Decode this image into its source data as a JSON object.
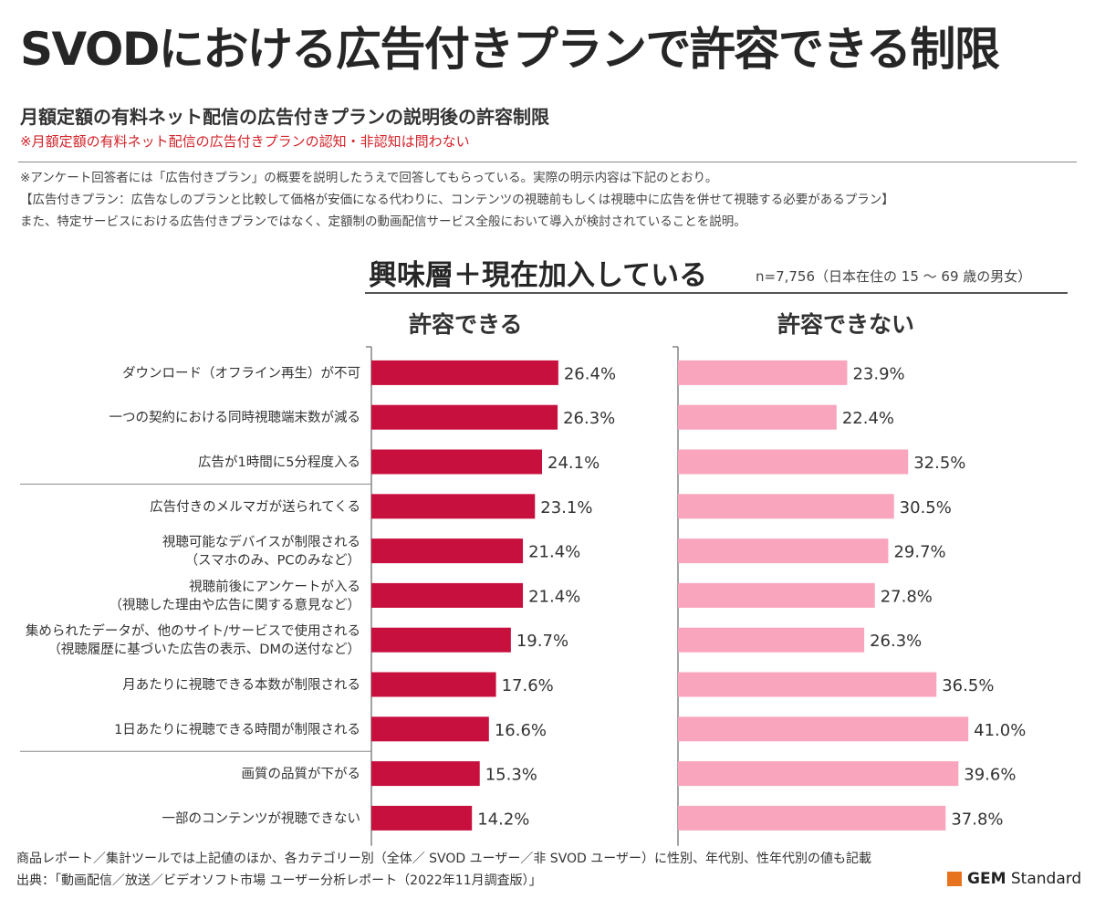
{
  "title": "SVODにおける広告付きプランで許容できる制限",
  "subtitle": "月額定額の有料ネット配信の広告付きプランの説明後の許容制限",
  "subnote": "※月額定額の有料ネット配信の広告付きプランの認知・非認知は問わない",
  "notes": [
    "※アンケート回答者には「広告付きプラン」の概要を説明したうえで回答してもらっている。実際の明示内容は下記のとおり。",
    "【広告付きプラン：広告なしのプランと比較して価格が安価になる代わりに、コンテンツの視聴前もしくは視聴中に広告を併せて視聴する必要があるプラン】",
    "また、特定サービスにおける広告付きプランではなく、定額制の動画配信サービス全般において導入が検討されていることを説明。"
  ],
  "section_title": "興味層＋現在加入している",
  "sample_note": "n=7,756（日本在住の 15 ～ 69 歳の男女）",
  "chart_data": {
    "type": "bar",
    "orientation": "horizontal",
    "title": "興味層＋現在加入している",
    "value_unit": "%",
    "categories": [
      [
        "ダウンロード（オフライン再生）が不可"
      ],
      [
        "一つの契約における同時視聴端末数が減る"
      ],
      [
        "広告が1時間に5分程度入る"
      ],
      [
        "広告付きのメルマガが送られてくる"
      ],
      [
        "視聴可能なデバイスが制限される",
        "（スマホのみ、PCのみなど）"
      ],
      [
        "視聴前後にアンケートが入る",
        "（視聴した理由や広告に関する意見など）"
      ],
      [
        "集められたデータが、他のサイト/サービスで使用される",
        "（視聴履歴に基づいた広告の表示、DMの送付など）"
      ],
      [
        "月あたりに視聴できる本数が制限される"
      ],
      [
        "1日あたりに視聴できる時間が制限される"
      ],
      [
        "画質の品質が下がる"
      ],
      [
        "一部のコンテンツが視聴できない"
      ]
    ],
    "group_breaks_after": [
      2,
      8
    ],
    "series": [
      {
        "name": "許容できる",
        "color": "#c8103e",
        "values": [
          26.4,
          26.3,
          24.1,
          23.1,
          21.4,
          21.4,
          19.7,
          17.6,
          16.6,
          15.3,
          14.2
        ],
        "labels": [
          "26.4%",
          "26.3%",
          "24.1%",
          "23.1%",
          "21.4%",
          "21.4%",
          "19.7%",
          "17.6%",
          "16.6%",
          "15.3%",
          "14.2%"
        ]
      },
      {
        "name": "許容できない",
        "color": "#f9a5bd",
        "values": [
          23.9,
          22.4,
          32.5,
          30.5,
          29.7,
          27.8,
          26.3,
          36.5,
          41.0,
          39.6,
          37.8
        ],
        "labels": [
          "23.9%",
          "22.4%",
          "32.5%",
          "30.5%",
          "29.7%",
          "27.8%",
          "26.3%",
          "36.5%",
          "41.0%",
          "39.6%",
          "37.8%"
        ]
      }
    ]
  },
  "footer": {
    "line1": "商品レポート／集計ツールでは上記値のほか、各カテゴリー別（全体／ SVOD ユーザー／非 SVOD ユーザー）に性別、年代別、性年代別の値も記載",
    "line2": "出典：「動画配信／放送／ビデオソフト市場 ユーザー分析レポート（2022年11月調査版）」"
  },
  "logo": {
    "bold": "GEM",
    "rest": " Standard",
    "color": "#e8731e"
  }
}
